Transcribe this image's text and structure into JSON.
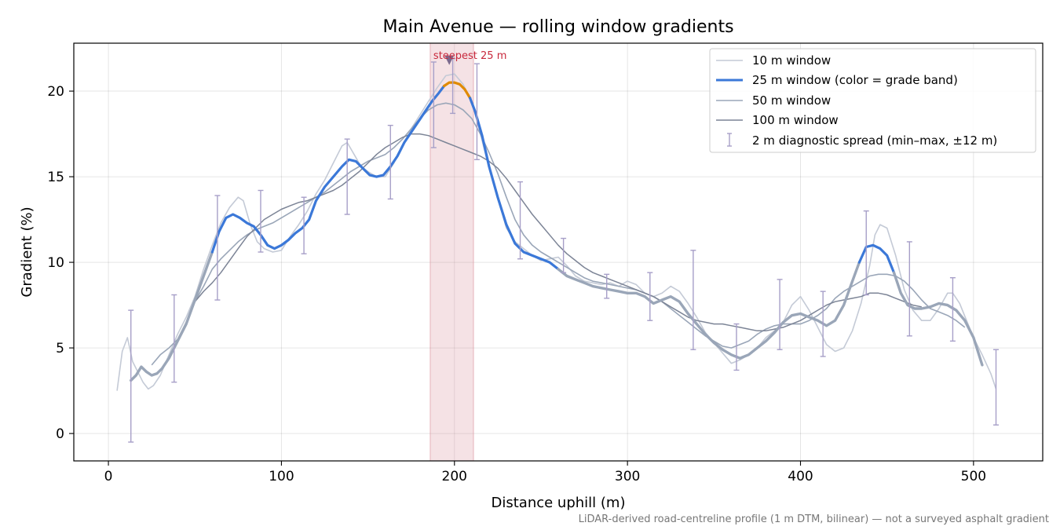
{
  "chart_data": {
    "type": "line",
    "title": "Main Avenue — rolling window gradients",
    "xlabel": "Distance uphill (m)",
    "ylabel": "Gradient (%)",
    "xlim": [
      -20,
      540
    ],
    "ylim": [
      -1.6,
      22.8
    ],
    "xticks": [
      0,
      100,
      200,
      300,
      400,
      500
    ],
    "yticks": [
      0,
      5,
      10,
      15,
      20
    ],
    "grid": true,
    "legend_position": "top-right",
    "footnote": "LiDAR-derived road-centreline profile (1 m DTM, bilinear) — not a surveyed asphalt gradient",
    "highlight": {
      "x_start": 186,
      "x_end": 211,
      "label": "steepest 25 m",
      "marker_x": 197,
      "marker_y": 21.8,
      "color": "#d98a96"
    },
    "series": [
      {
        "name": "10 m window",
        "color": "#c4cad6",
        "x": [
          5,
          8,
          11,
          14,
          17,
          20,
          23,
          26,
          30,
          35,
          40,
          45,
          50,
          55,
          60,
          65,
          70,
          75,
          78,
          82,
          86,
          90,
          95,
          100,
          105,
          110,
          115,
          120,
          125,
          130,
          135,
          138,
          142,
          146,
          150,
          155,
          160,
          165,
          170,
          175,
          180,
          185,
          190,
          195,
          200,
          205,
          210,
          215,
          220,
          225,
          230,
          235,
          240,
          245,
          250,
          255,
          260,
          265,
          270,
          275,
          280,
          285,
          290,
          295,
          300,
          305,
          310,
          315,
          320,
          325,
          330,
          335,
          340,
          345,
          350,
          355,
          360,
          365,
          370,
          375,
          380,
          385,
          390,
          395,
          400,
          405,
          410,
          415,
          420,
          425,
          430,
          435,
          440,
          443,
          446,
          450,
          455,
          460,
          465,
          470,
          475,
          480,
          485,
          488,
          492,
          496,
          500,
          505,
          510,
          513
        ],
        "y": [
          2.5,
          4.8,
          5.6,
          4.2,
          3.6,
          3.0,
          2.6,
          2.8,
          3.4,
          4.6,
          5.8,
          6.8,
          8.0,
          9.6,
          11.0,
          12.3,
          13.2,
          13.8,
          13.6,
          12.2,
          11.2,
          10.8,
          10.6,
          10.7,
          11.5,
          12.2,
          13.0,
          14.0,
          14.8,
          15.8,
          16.8,
          17.0,
          16.3,
          15.6,
          15.3,
          15.0,
          15.0,
          15.8,
          16.8,
          17.8,
          18.6,
          19.4,
          20.2,
          20.9,
          21.0,
          20.4,
          19.4,
          17.5,
          15.5,
          13.8,
          12.0,
          11.2,
          10.8,
          10.4,
          10.1,
          10.2,
          10.3,
          9.8,
          9.2,
          8.9,
          8.8,
          8.7,
          8.8,
          8.6,
          8.9,
          8.7,
          8.2,
          8.0,
          8.2,
          8.6,
          8.3,
          7.6,
          6.8,
          5.9,
          5.3,
          4.7,
          4.1,
          4.3,
          4.6,
          5.0,
          5.6,
          6.0,
          6.5,
          7.5,
          8.0,
          7.2,
          6.2,
          5.2,
          4.8,
          5.0,
          6.0,
          7.6,
          9.8,
          11.6,
          12.2,
          12.0,
          10.4,
          8.4,
          7.2,
          6.6,
          6.6,
          7.3,
          8.2,
          8.2,
          7.6,
          6.6,
          5.6,
          4.6,
          3.5,
          2.6
        ]
      },
      {
        "name": "25 m window (color = grade band)",
        "color": "#3b78d8",
        "grade_band_colors": [
          "#9aa6b8",
          "#3b78d8",
          "#e08a00"
        ],
        "x": [
          13,
          16,
          19,
          22,
          25,
          28,
          31,
          35,
          40,
          45,
          50,
          55,
          60,
          64,
          68,
          72,
          76,
          80,
          84,
          88,
          92,
          96,
          100,
          104,
          108,
          112,
          116,
          120,
          125,
          130,
          135,
          139,
          143,
          147,
          151,
          155,
          159,
          163,
          167,
          171,
          175,
          179,
          183,
          187,
          191,
          194,
          197,
          200,
          203,
          206,
          209,
          212,
          216,
          220,
          225,
          230,
          235,
          240,
          245,
          250,
          255,
          260,
          265,
          270,
          275,
          280,
          285,
          290,
          295,
          300,
          305,
          310,
          315,
          320,
          325,
          330,
          335,
          340,
          345,
          350,
          355,
          360,
          365,
          370,
          375,
          380,
          385,
          390,
          395,
          400,
          405,
          410,
          415,
          420,
          425,
          430,
          434,
          438,
          442,
          446,
          450,
          454,
          458,
          462,
          466,
          470,
          475,
          480,
          485,
          490,
          495,
          500,
          505
        ],
        "y": [
          3.1,
          3.4,
          3.9,
          3.6,
          3.4,
          3.5,
          3.8,
          4.4,
          5.4,
          6.4,
          7.8,
          9.2,
          10.6,
          11.8,
          12.6,
          12.8,
          12.6,
          12.3,
          12.1,
          11.6,
          11.0,
          10.8,
          11.0,
          11.3,
          11.7,
          12.0,
          12.5,
          13.6,
          14.4,
          15.0,
          15.6,
          16.0,
          15.9,
          15.5,
          15.1,
          15.0,
          15.1,
          15.6,
          16.2,
          17.0,
          17.6,
          18.2,
          18.8,
          19.4,
          19.9,
          20.3,
          20.5,
          20.5,
          20.4,
          20.1,
          19.6,
          18.8,
          17.4,
          15.6,
          13.8,
          12.2,
          11.1,
          10.6,
          10.4,
          10.2,
          10.0,
          9.6,
          9.2,
          9.0,
          8.8,
          8.6,
          8.5,
          8.4,
          8.3,
          8.2,
          8.2,
          8.0,
          7.6,
          7.8,
          8.0,
          7.7,
          7.0,
          6.4,
          5.8,
          5.3,
          4.9,
          4.6,
          4.4,
          4.6,
          5.0,
          5.4,
          5.9,
          6.5,
          6.9,
          7.0,
          6.8,
          6.6,
          6.3,
          6.6,
          7.5,
          8.9,
          10.0,
          10.9,
          11.0,
          10.8,
          10.4,
          9.4,
          8.2,
          7.5,
          7.3,
          7.3,
          7.4,
          7.6,
          7.5,
          7.2,
          6.6,
          5.6,
          4.0
        ],
        "band_segments": [
          {
            "x_start": 13,
            "x_end": 60,
            "band": 0
          },
          {
            "x_start": 60,
            "x_end": 194,
            "band": 1
          },
          {
            "x_start": 194,
            "x_end": 209,
            "band": 2
          },
          {
            "x_start": 209,
            "x_end": 260,
            "band": 1
          },
          {
            "x_start": 260,
            "x_end": 434,
            "band": 0
          },
          {
            "x_start": 434,
            "x_end": 454,
            "band": 1
          },
          {
            "x_start": 454,
            "x_end": 505,
            "band": 0
          }
        ]
      },
      {
        "name": "50 m window",
        "color": "#9aa6b8",
        "x": [
          25,
          30,
          35,
          40,
          45,
          50,
          55,
          60,
          65,
          70,
          75,
          80,
          85,
          90,
          95,
          100,
          105,
          110,
          115,
          120,
          125,
          130,
          135,
          140,
          145,
          150,
          155,
          160,
          165,
          170,
          175,
          180,
          185,
          190,
          195,
          200,
          205,
          210,
          215,
          220,
          225,
          230,
          235,
          240,
          245,
          250,
          255,
          260,
          265,
          270,
          275,
          280,
          285,
          290,
          295,
          300,
          305,
          310,
          315,
          320,
          325,
          330,
          335,
          340,
          345,
          350,
          355,
          360,
          365,
          370,
          375,
          380,
          385,
          390,
          395,
          400,
          405,
          410,
          415,
          420,
          425,
          430,
          435,
          440,
          445,
          450,
          455,
          460,
          465,
          470,
          475,
          480,
          485,
          490,
          495
        ],
        "y": [
          4.0,
          4.6,
          5.0,
          5.5,
          6.5,
          7.7,
          8.6,
          9.6,
          10.2,
          10.7,
          11.2,
          11.6,
          11.9,
          12.1,
          12.3,
          12.6,
          12.9,
          13.2,
          13.5,
          13.8,
          14.1,
          14.5,
          14.9,
          15.3,
          15.6,
          15.9,
          16.1,
          16.3,
          16.7,
          17.2,
          17.8,
          18.4,
          18.9,
          19.2,
          19.3,
          19.2,
          18.9,
          18.4,
          17.5,
          16.4,
          15.2,
          13.8,
          12.5,
          11.6,
          11.0,
          10.6,
          10.3,
          10.0,
          9.7,
          9.4,
          9.1,
          8.9,
          8.8,
          8.7,
          8.6,
          8.5,
          8.4,
          8.2,
          8.0,
          7.7,
          7.3,
          6.9,
          6.5,
          6.1,
          5.7,
          5.4,
          5.1,
          5.0,
          5.2,
          5.4,
          5.8,
          6.1,
          6.3,
          6.4,
          6.4,
          6.4,
          6.6,
          6.9,
          7.3,
          7.9,
          8.3,
          8.6,
          8.9,
          9.2,
          9.3,
          9.3,
          9.2,
          8.9,
          8.4,
          7.8,
          7.3,
          7.1,
          6.9,
          6.6,
          6.2
        ]
      },
      {
        "name": "100 m window",
        "color": "#7c8496",
        "x": [
          50,
          55,
          60,
          65,
          70,
          75,
          80,
          85,
          90,
          95,
          100,
          105,
          110,
          115,
          120,
          125,
          130,
          135,
          140,
          145,
          150,
          155,
          160,
          165,
          170,
          175,
          180,
          185,
          190,
          195,
          200,
          205,
          210,
          215,
          220,
          225,
          230,
          235,
          240,
          245,
          250,
          255,
          260,
          265,
          270,
          275,
          280,
          285,
          290,
          295,
          300,
          305,
          310,
          315,
          320,
          325,
          330,
          335,
          340,
          345,
          350,
          355,
          360,
          365,
          370,
          375,
          380,
          385,
          390,
          395,
          400,
          405,
          410,
          415,
          420,
          425,
          430,
          435,
          440,
          445,
          450,
          455,
          460,
          465,
          470
        ],
        "y": [
          7.7,
          8.3,
          8.8,
          9.4,
          10.1,
          10.8,
          11.5,
          12.0,
          12.5,
          12.8,
          13.1,
          13.3,
          13.5,
          13.6,
          13.8,
          14.0,
          14.2,
          14.5,
          14.9,
          15.3,
          15.8,
          16.3,
          16.7,
          17.0,
          17.3,
          17.5,
          17.5,
          17.4,
          17.2,
          17.0,
          16.8,
          16.6,
          16.4,
          16.2,
          15.9,
          15.5,
          14.9,
          14.2,
          13.5,
          12.8,
          12.2,
          11.6,
          11.0,
          10.5,
          10.1,
          9.7,
          9.4,
          9.2,
          9.0,
          8.8,
          8.6,
          8.4,
          8.2,
          8.0,
          7.7,
          7.4,
          7.1,
          6.8,
          6.6,
          6.5,
          6.4,
          6.4,
          6.3,
          6.2,
          6.1,
          6.0,
          6.0,
          6.1,
          6.2,
          6.4,
          6.6,
          6.9,
          7.2,
          7.5,
          7.7,
          7.8,
          7.9,
          8.0,
          8.2,
          8.2,
          8.1,
          7.9,
          7.7,
          7.5,
          7.4
        ]
      }
    ],
    "error_bars": {
      "name": "2 m diagnostic spread (min–max, ±12 m)",
      "color": "#a79fc8",
      "x": [
        13,
        38,
        63,
        88,
        113,
        138,
        163,
        188,
        199,
        213,
        238,
        263,
        288,
        313,
        338,
        363,
        388,
        413,
        438,
        463,
        488,
        513
      ],
      "low": [
        -0.5,
        3.0,
        7.8,
        10.6,
        10.5,
        12.8,
        13.7,
        16.7,
        18.7,
        16.0,
        10.2,
        9.4,
        7.9,
        6.6,
        4.9,
        3.7,
        4.9,
        4.5,
        8.1,
        5.7,
        5.4,
        0.5
      ],
      "high": [
        7.2,
        8.1,
        13.9,
        14.2,
        13.8,
        17.2,
        18.0,
        21.7,
        21.9,
        21.6,
        14.7,
        11.4,
        9.3,
        9.4,
        10.7,
        6.4,
        9.0,
        8.3,
        13.0,
        11.2,
        9.1,
        4.9
      ]
    }
  }
}
